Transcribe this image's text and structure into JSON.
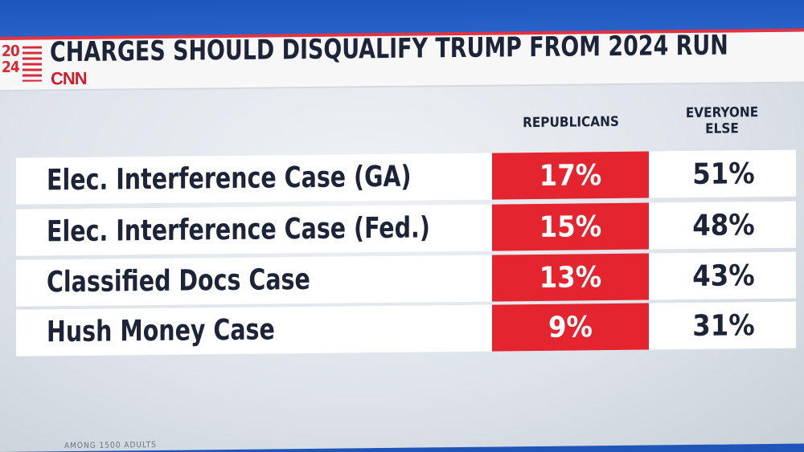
{
  "title": "CHARGES SHOULD DISQUALIFY TRUMP FROM 2024 RUN",
  "logo": {
    "year_top": "20",
    "year_bottom": "24",
    "network": "CNN"
  },
  "columns": {
    "republicans": "REPUBLICANS",
    "everyone_else": "EVERYONE ELSE"
  },
  "colors": {
    "accent_red": "#e4242e",
    "header_blue": "#1d56bd",
    "text_navy": "#1d2438"
  },
  "chart_data": {
    "type": "table",
    "title": "CHARGES SHOULD DISQUALIFY TRUMP FROM 2024 RUN",
    "columns": [
      "REPUBLICANS",
      "EVERYONE ELSE"
    ],
    "rows": [
      {
        "label": "Elec. Interference Case (GA)",
        "republicans": "17%",
        "everyone_else": "51%"
      },
      {
        "label": "Elec. Interference Case (Fed.)",
        "republicans": "15%",
        "everyone_else": "48%"
      },
      {
        "label": "Classified Docs Case",
        "republicans": "13%",
        "everyone_else": "43%"
      },
      {
        "label": "Hush Money Case",
        "republicans": "9%",
        "everyone_else": "31%"
      }
    ],
    "values": {
      "republicans": [
        17,
        15,
        13,
        9
      ],
      "everyone_else": [
        51,
        48,
        43,
        31
      ]
    }
  },
  "footnote": "AMONG 1500 ADULTS"
}
